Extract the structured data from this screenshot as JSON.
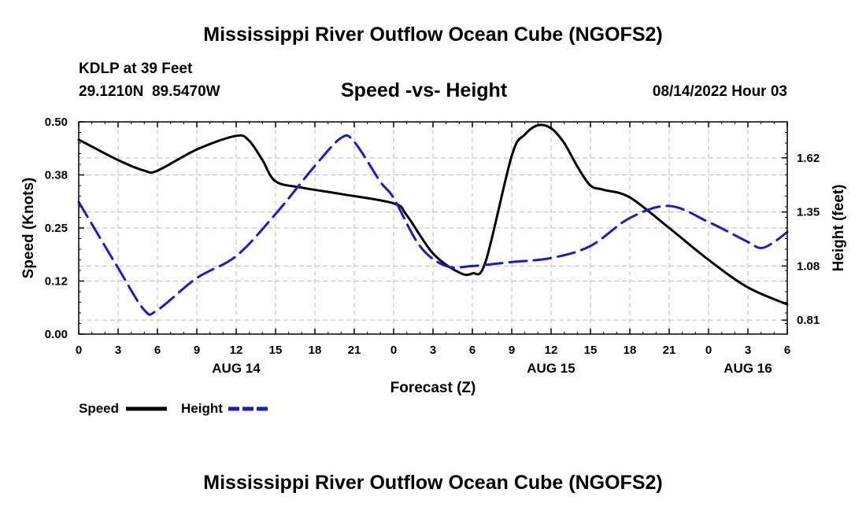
{
  "header": {
    "title": "Mississippi River Outflow Ocean Cube (NGOFS2)",
    "station": "KDLP at 39 Feet",
    "coords": "29.1210N  89.5470W",
    "subtitle": "Speed -vs- Height",
    "datetime": "08/14/2022 Hour 03"
  },
  "footer": {
    "title": "Mississippi River Outflow Ocean Cube (NGOFS2)"
  },
  "legend": {
    "speed_label": "Speed",
    "height_label": "Height",
    "speed_color": "#000000",
    "height_color": "#1a1ad6"
  },
  "chart_data": {
    "type": "line",
    "title": "Speed -vs- Height",
    "xlabel": "Forecast (Z)",
    "ylabel": "Speed (Knots)",
    "y2label": "Height (feet)",
    "xlim": [
      0,
      54
    ],
    "ylim": [
      0,
      0.5
    ],
    "y2lim": [
      0.74,
      1.8
    ],
    "x_ticks": [
      0,
      3,
      6,
      9,
      12,
      15,
      18,
      21,
      24,
      27,
      30,
      33,
      36,
      39,
      42,
      45,
      48,
      51,
      54
    ],
    "x_tick_labels": [
      "0",
      "3",
      "6",
      "9",
      "12",
      "15",
      "18",
      "21",
      "0",
      "3",
      "6",
      "9",
      "12",
      "15",
      "18",
      "21",
      "0",
      "3",
      "6"
    ],
    "date_labels": [
      {
        "x": 12,
        "label": "AUG 14"
      },
      {
        "x": 36,
        "label": "AUG 15"
      },
      {
        "x": 51,
        "label": "AUG 16"
      }
    ],
    "y_ticks": [
      0.0,
      0.125,
      0.25,
      0.375,
      0.5
    ],
    "y_tick_labels": [
      "0.00",
      "0.12",
      "0.25",
      "0.38",
      "0.50"
    ],
    "y2_ticks": [
      0.81,
      1.08,
      1.35,
      1.62
    ],
    "y2_tick_labels": [
      "0.81",
      "1.08",
      "1.35",
      "1.62"
    ],
    "series": [
      {
        "name": "Speed",
        "axis": "left",
        "style": "solid",
        "x": [
          0,
          3,
          5,
          6,
          9,
          12,
          13,
          14,
          15,
          17,
          20,
          24,
          25,
          27,
          29,
          30,
          31,
          33,
          34,
          35,
          36,
          37,
          38,
          39,
          40,
          42,
          45,
          48,
          51,
          54
        ],
        "values": [
          0.458,
          0.41,
          0.385,
          0.385,
          0.435,
          0.467,
          0.455,
          0.41,
          0.36,
          0.345,
          0.33,
          0.308,
          0.28,
          0.19,
          0.145,
          0.143,
          0.17,
          0.42,
          0.47,
          0.492,
          0.485,
          0.45,
          0.395,
          0.35,
          0.34,
          0.322,
          0.25,
          0.175,
          0.11,
          0.07
        ]
      },
      {
        "name": "Height",
        "axis": "right",
        "style": "dashed",
        "x": [
          0,
          3,
          5,
          6,
          9,
          12,
          15,
          18,
          20,
          21,
          23,
          24,
          26,
          28,
          30,
          33,
          36,
          39,
          42,
          45,
          48,
          51,
          52,
          53,
          54
        ],
        "values": [
          1.4,
          1.07,
          0.86,
          0.86,
          1.02,
          1.13,
          1.34,
          1.58,
          1.72,
          1.7,
          1.5,
          1.42,
          1.18,
          1.08,
          1.08,
          1.1,
          1.12,
          1.18,
          1.32,
          1.38,
          1.3,
          1.2,
          1.17,
          1.2,
          1.25
        ]
      }
    ]
  }
}
